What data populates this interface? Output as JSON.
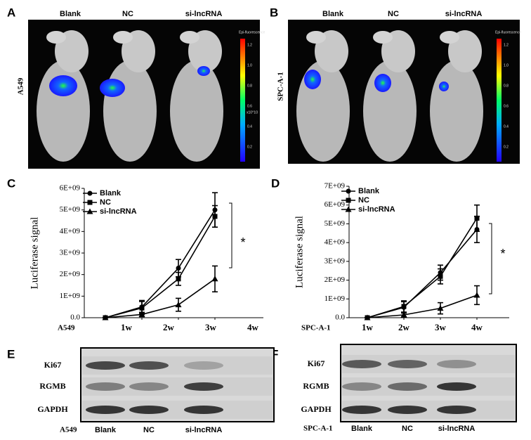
{
  "panel_labels": [
    "A",
    "B",
    "C",
    "D",
    "E",
    "F"
  ],
  "imaging": [
    {
      "cell_line": "A549",
      "groups": [
        "Blank",
        "NC",
        "si-lncRNA"
      ],
      "colorbar_title": "Epi-fluorescence",
      "colorbar_unit": "x10^10",
      "colorbar_ticks": [
        "1.2",
        "1.0",
        "0.8",
        "0.6",
        "0.4",
        "0.2"
      ]
    },
    {
      "cell_line": "SPC-A-1",
      "groups": [
        "Blank",
        "NC",
        "si-lncRNA"
      ],
      "colorbar_title": "Epi-fluorescence",
      "colorbar_ticks": [
        "1.2",
        "1.0",
        "0.8",
        "0.6",
        "0.4",
        "0.2"
      ]
    }
  ],
  "chart_data": [
    {
      "type": "line",
      "x_label": "A549",
      "y_label": "Luciferase signal",
      "annotation": "*",
      "categories": [
        "1w",
        "2w",
        "3w",
        "4w"
      ],
      "ylim": [
        0,
        6000000000
      ],
      "yticks": [
        {
          "value": 0,
          "label": "0.0"
        },
        {
          "value": 1000000000,
          "label": "1E+09"
        },
        {
          "value": 2000000000,
          "label": "2E+09"
        },
        {
          "value": 3000000000,
          "label": "3E+09"
        },
        {
          "value": 4000000000,
          "label": "4E+09"
        },
        {
          "value": 5000000000,
          "label": "5E+09"
        },
        {
          "value": 6000000000,
          "label": "6E+09"
        }
      ],
      "series": [
        {
          "name": "Blank",
          "color": "#000000",
          "marker": "circle",
          "values": [
            0,
            500000000,
            2300000000,
            5000000000
          ],
          "errors": [
            0,
            300000000,
            400000000,
            800000000
          ]
        },
        {
          "name": "NC",
          "color": "#000000",
          "marker": "square",
          "values": [
            0,
            450000000,
            1800000000,
            4700000000
          ],
          "errors": [
            0,
            300000000,
            300000000,
            500000000
          ]
        },
        {
          "name": "si-lncRNA",
          "color": "#000000",
          "marker": "triangle",
          "values": [
            0,
            150000000,
            600000000,
            1800000000
          ],
          "errors": [
            0,
            100000000,
            300000000,
            600000000
          ]
        }
      ]
    },
    {
      "type": "line",
      "x_label": "SPC-A-1",
      "y_label": "Luciferase signal",
      "annotation": "*",
      "categories": [
        "1w",
        "2w",
        "3w",
        "4w"
      ],
      "ylim": [
        0,
        7000000000
      ],
      "yticks": [
        {
          "value": 0,
          "label": "0.0"
        },
        {
          "value": 1000000000,
          "label": "1E+09"
        },
        {
          "value": 2000000000,
          "label": "2E+09"
        },
        {
          "value": 3000000000,
          "label": "3E+09"
        },
        {
          "value": 4000000000,
          "label": "4E+09"
        },
        {
          "value": 5000000000,
          "label": "5E+09"
        },
        {
          "value": 6000000000,
          "label": "6E+09"
        },
        {
          "value": 7000000000,
          "label": "7E+09"
        }
      ],
      "series": [
        {
          "name": "Blank",
          "color": "#000000",
          "marker": "circle",
          "values": [
            0,
            550000000,
            2400000000,
            4700000000
          ],
          "errors": [
            0,
            300000000,
            400000000,
            700000000
          ]
        },
        {
          "name": "NC",
          "color": "#000000",
          "marker": "square",
          "values": [
            0,
            600000000,
            2200000000,
            5300000000
          ],
          "errors": [
            0,
            300000000,
            400000000,
            700000000
          ]
        },
        {
          "name": "si-lncRNA",
          "color": "#000000",
          "marker": "triangle",
          "values": [
            0,
            150000000,
            500000000,
            1200000000
          ],
          "errors": [
            0,
            100000000,
            300000000,
            500000000
          ]
        }
      ]
    }
  ],
  "blots": [
    {
      "cell_line": "A549",
      "rows": [
        "Ki67",
        "RGMB",
        "GAPDH"
      ],
      "lanes": [
        "Blank",
        "NC",
        "si-lncRNA"
      ]
    },
    {
      "cell_line": "SPC-A-1",
      "rows": [
        "Ki67",
        "RGMB",
        "GAPDH"
      ],
      "lanes": [
        "Blank",
        "NC",
        "si-lncRNA"
      ]
    }
  ]
}
